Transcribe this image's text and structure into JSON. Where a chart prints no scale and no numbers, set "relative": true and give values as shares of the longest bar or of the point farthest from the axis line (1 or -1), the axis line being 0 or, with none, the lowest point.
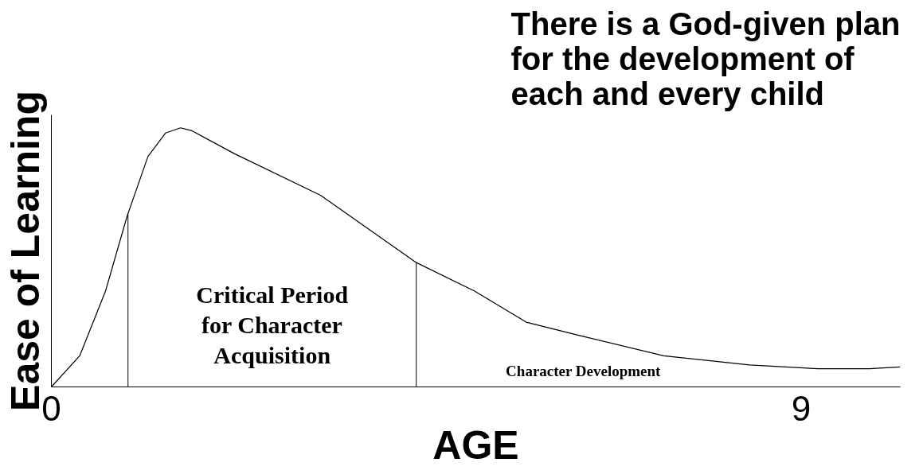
{
  "chart_data": {
    "type": "line",
    "title": "There is a God-given plan\nfor the development of\neach and every child",
    "xlabel": "AGE",
    "ylabel": "Ease of Learning",
    "relative": true,
    "xlim": [
      0,
      10.19
    ],
    "xticks": [
      0,
      9
    ],
    "line_style": "solid",
    "series": [
      {
        "color": "#000000",
        "x": [
          0,
          0.34,
          0.65,
          0.91,
          1.16,
          1.37,
          1.55,
          1.68,
          2.2,
          3.23,
          4.38,
          5.08,
          5.7,
          6.32,
          7.35,
          8.38,
          9.21,
          9.82,
          10.19
        ],
        "values": [
          0,
          0.12,
          0.37,
          0.66,
          0.89,
          0.98,
          1.0,
          0.99,
          0.9,
          0.74,
          0.48,
          0.37,
          0.25,
          0.2,
          0.12,
          0.085,
          0.07,
          0.07,
          0.077
        ]
      }
    ],
    "ref_lines": [
      {
        "axis": "x",
        "value": 0.92,
        "color": "#000000"
      },
      {
        "axis": "x",
        "value": 4.38,
        "color": "#000000"
      }
    ],
    "annotations": [
      "Critical Period\nfor Character\nAcquisition",
      "Character Development"
    ]
  }
}
